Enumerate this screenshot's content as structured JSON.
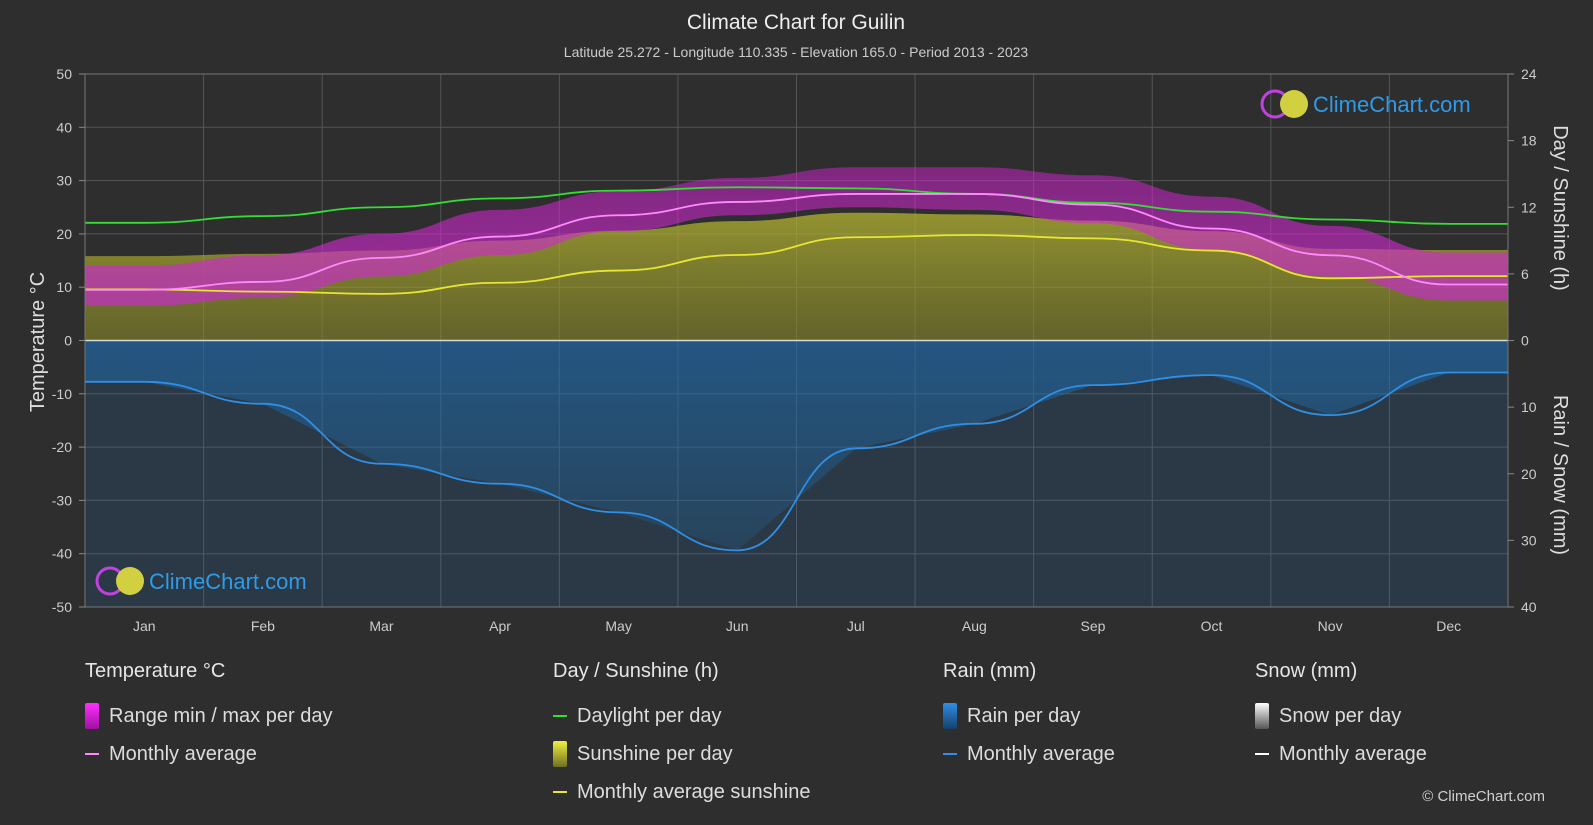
{
  "title": "Climate Chart for Guilin",
  "subtitle": "Latitude 25.272 - Longitude 110.335 - Elevation 165.0 - Period 2013 - 2023",
  "brand": "ClimeChart.com",
  "copyright": "© ClimeChart.com",
  "colors": {
    "background": "#2e2e2e",
    "temp_range": "#d020d0",
    "temp_avg": "#ff88ff",
    "daylight": "#33dd33",
    "sunshine_fill": "#b4b432",
    "sunshine_avg": "#e6e632",
    "rain_fill": "#1e6eb4",
    "rain_avg": "#2f8fe6",
    "snow": "#ffffff",
    "brand_text": "#2f9be8"
  },
  "legend": {
    "temperature": {
      "header": "Temperature °C",
      "range": "Range min / max per day",
      "avg": "Monthly average"
    },
    "sunshine": {
      "header": "Day / Sunshine (h)",
      "daylight": "Daylight per day",
      "sunshine": "Sunshine per day",
      "avg": "Monthly average sunshine"
    },
    "rain": {
      "header": "Rain (mm)",
      "per_day": "Rain per day",
      "avg": "Monthly average"
    },
    "snow": {
      "header": "Snow (mm)",
      "per_day": "Snow per day",
      "avg": "Monthly average"
    }
  },
  "chart_data": {
    "type": "line",
    "title": "Climate Chart for Guilin",
    "categories": [
      "Jan",
      "Feb",
      "Mar",
      "Apr",
      "May",
      "Jun",
      "Jul",
      "Aug",
      "Sep",
      "Oct",
      "Nov",
      "Dec"
    ],
    "axes": {
      "left": {
        "label": "Temperature °C",
        "min": -50,
        "max": 50,
        "ticks": [
          50,
          40,
          30,
          20,
          10,
          0,
          -10,
          -20,
          -30,
          -40,
          -50
        ]
      },
      "right_top": {
        "label": "Day / Sunshine (h)",
        "min": 0,
        "max": 24,
        "ticks": [
          24,
          18,
          12,
          6,
          0
        ]
      },
      "right_bottom": {
        "label": "Rain / Snow (mm)",
        "min": 0,
        "max": 40,
        "ticks": [
          0,
          10,
          20,
          30,
          40
        ]
      }
    },
    "grid": true,
    "series": [
      {
        "name": "Daylight per day",
        "unit": "h",
        "values": [
          10.6,
          11.2,
          12.0,
          12.8,
          13.5,
          13.8,
          13.7,
          13.2,
          12.4,
          11.6,
          10.9,
          10.5
        ]
      },
      {
        "name": "Monthly average sunshine",
        "unit": "h",
        "values": [
          4.6,
          4.4,
          4.2,
          5.2,
          6.3,
          7.7,
          9.3,
          9.5,
          9.2,
          8.1,
          5.6,
          5.8
        ]
      },
      {
        "name": "Temperature monthly average",
        "unit": "°C",
        "values": [
          9.5,
          11.0,
          15.5,
          19.5,
          23.5,
          26.0,
          27.5,
          27.5,
          25.5,
          21.0,
          16.0,
          10.5
        ]
      },
      {
        "name": "Temperature range max per day",
        "unit": "°C",
        "values": [
          14.0,
          16.0,
          20.0,
          24.5,
          28.0,
          30.5,
          32.5,
          32.5,
          31.0,
          27.0,
          21.5,
          16.5
        ]
      },
      {
        "name": "Temperature range min per day",
        "unit": "°C",
        "values": [
          6.5,
          8.0,
          12.0,
          16.0,
          20.5,
          23.5,
          25.0,
          24.5,
          22.0,
          17.0,
          12.0,
          7.5
        ]
      },
      {
        "name": "Rain monthly average",
        "unit": "mm",
        "values": [
          6.2,
          9.5,
          18.5,
          21.5,
          25.8,
          31.5,
          16.2,
          12.5,
          6.7,
          5.2,
          11.2,
          4.8
        ]
      }
    ]
  }
}
